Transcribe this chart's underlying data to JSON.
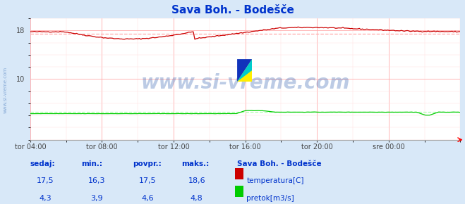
{
  "title": "Sava Boh. - Bodešče",
  "bg_color": "#d8e8f8",
  "plot_bg_color": "#ffffff",
  "grid_color": "#ffaaaa",
  "grid_minor_color": "#ffdddd",
  "x_labels": [
    "tor 04:00",
    "tor 08:00",
    "tor 12:00",
    "tor 16:00",
    "tor 20:00",
    "sre 00:00"
  ],
  "x_ticks": [
    0,
    96,
    192,
    288,
    384,
    480
  ],
  "x_max": 576,
  "ylim": [
    0,
    20
  ],
  "y_ticks_major": [
    10,
    18
  ],
  "temp_color": "#cc0000",
  "flow_color": "#00cc00",
  "avg_temp_color": "#ffaaaa",
  "avg_flow_color": "#aaffaa",
  "watermark_text": "www.si-vreme.com",
  "watermark_color": "#2255aa",
  "watermark_alpha": 0.3,
  "sidebar_text": "www.si-vreme.com",
  "sidebar_color": "#4477bb",
  "title_color": "#0033cc",
  "title_fontsize": 11,
  "label_color": "#0033cc",
  "sedaj_temp": "17,5",
  "min_temp": "16,3",
  "povpr_temp": "17,5",
  "maks_temp": "18,6",
  "sedaj_flow": "4,3",
  "min_flow": "3,9",
  "povpr_flow": "4,6",
  "maks_flow": "4,8",
  "station_name": "Sava Boh. - Bodešče",
  "label_temp": "temperatura[C]",
  "label_flow": "pretok[m3/s]",
  "temp_avg_value": 17.5,
  "flow_avg_value": 4.6,
  "headers": [
    "sedaj:",
    "min.:",
    "povpr.:",
    "maks.:"
  ]
}
